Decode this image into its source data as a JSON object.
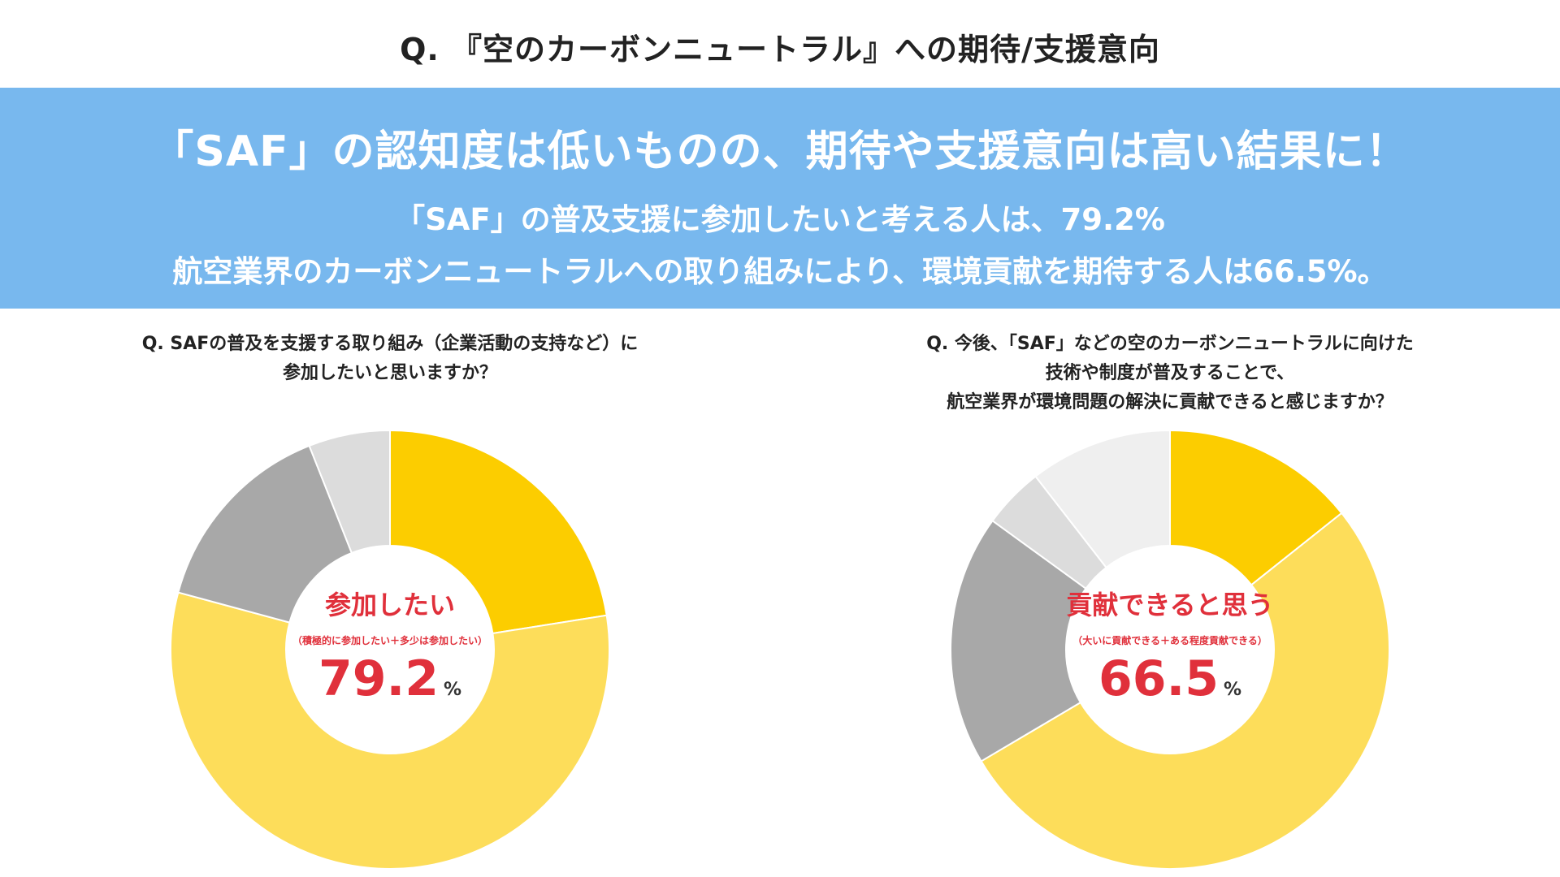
{
  "page_title": "Q. 『空のカーボンニュートラル』への期待/支援意向",
  "banner": {
    "headline": "「SAF」の認知度は低いものの、期待や支援意向は高い結果に！",
    "line1": "「SAF」の普及支援に参加したいと考える人は、79.2%",
    "line2": "航空業界のカーボンニュートラルへの取り組みにより、環境貢献を期待する人は66.5%。"
  },
  "colors": {
    "banner_bg": "#78b8ee",
    "accent_red": "#e0303b",
    "yellow_dark": "#fccd00",
    "yellow_light": "#fddd5a",
    "gray_dark": "#a8a8a8",
    "gray_mid": "#d4d4d4",
    "gray_light": "#e8e8e8"
  },
  "chart_data": [
    {
      "type": "pie",
      "donut": true,
      "question": [
        "Q.  SAFの普及を支援する取り組み（企業活動の支持など）に",
        "参加したいと思いますか？"
      ],
      "center_label": "参加したい",
      "center_note": "（積極的に参加したい＋多少は参加したい）",
      "center_value": "79.2",
      "center_unit": "%",
      "slices": [
        {
          "value": 22.5,
          "color": "#fccd00"
        },
        {
          "value": 56.7,
          "color": "#fddd5a"
        },
        {
          "value": 14.8,
          "color": "#a8a8a8"
        },
        {
          "value": 6.0,
          "color": "#dcdcdc"
        }
      ]
    },
    {
      "type": "pie",
      "donut": true,
      "question": [
        "Q.  今後、「SAF」などの空のカーボンニュートラルに向けた",
        "技術や制度が普及することで、",
        "航空業界が環境問題の解決に貢献できると感じますか？"
      ],
      "center_label": "貢献できると思う",
      "center_note": "（大いに貢献できる＋ある程度貢献できる）",
      "center_value": "66.5",
      "center_unit": "%",
      "slices": [
        {
          "value": 14.3,
          "color": "#fccd00"
        },
        {
          "value": 52.2,
          "color": "#fddd5a"
        },
        {
          "value": 18.5,
          "color": "#a8a8a8"
        },
        {
          "value": 4.5,
          "color": "#dcdcdc"
        },
        {
          "value": 10.5,
          "color": "#efefef"
        }
      ]
    }
  ]
}
